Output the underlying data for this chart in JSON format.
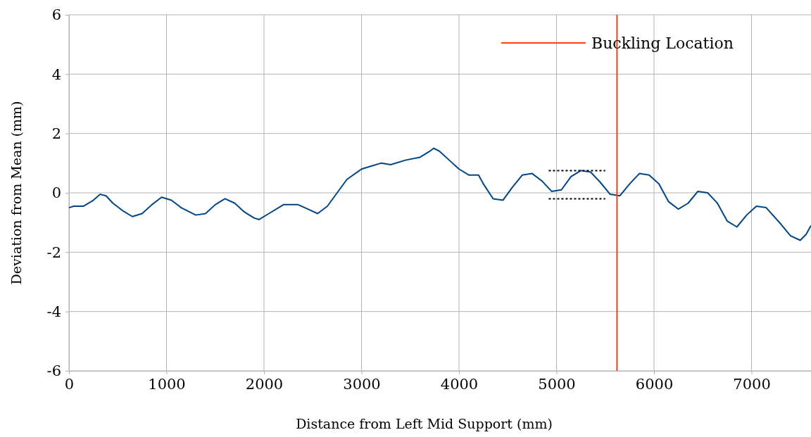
{
  "chart_data": {
    "type": "line",
    "xlabel": "Distance from Left Mid Support (mm)",
    "ylabel": "Deviation from Mean (mm)",
    "xlim": [
      0,
      7610
    ],
    "xticks": [
      0,
      1000,
      2000,
      3000,
      4000,
      5000,
      6000,
      7000
    ],
    "ylim": [
      -6,
      6
    ],
    "yticks": [
      -6,
      -4,
      -2,
      0,
      2,
      4,
      6
    ],
    "grid": true,
    "legend": "top right",
    "line_style": "solid",
    "series": [
      {
        "color": "#004586",
        "x": [
          0,
          50,
          150,
          250,
          320,
          380,
          450,
          550,
          650,
          750,
          850,
          950,
          1050,
          1150,
          1300,
          1400,
          1500,
          1600,
          1700,
          1800,
          1900,
          1950,
          2050,
          2200,
          2350,
          2450,
          2550,
          2650,
          2750,
          2850,
          3000,
          3100,
          3200,
          3300,
          3450,
          3600,
          3700,
          3740,
          3800,
          3900,
          4000,
          4100,
          4200,
          4250,
          4350,
          4450,
          4550,
          4650,
          4750,
          4850,
          4950,
          5050,
          5150,
          5250,
          5350,
          5450,
          5550,
          5650,
          5750,
          5850,
          5950,
          6050,
          6150,
          6250,
          6350,
          6450,
          6550,
          6650,
          6750,
          6850,
          6950,
          7050,
          7150,
          7300,
          7400,
          7500,
          7560,
          7610
        ],
        "values": [
          -0.5,
          -0.45,
          -0.45,
          -0.25,
          -0.05,
          -0.1,
          -0.35,
          -0.6,
          -0.8,
          -0.7,
          -0.4,
          -0.15,
          -0.25,
          -0.5,
          -0.75,
          -0.7,
          -0.4,
          -0.2,
          -0.35,
          -0.65,
          -0.85,
          -0.9,
          -0.7,
          -0.4,
          -0.4,
          -0.55,
          -0.7,
          -0.45,
          0,
          0.45,
          0.8,
          0.9,
          1,
          0.95,
          1.1,
          1.2,
          1.4,
          1.5,
          1.4,
          1.1,
          0.8,
          0.6,
          0.6,
          0.3,
          -0.2,
          -0.25,
          0.2,
          0.6,
          0.65,
          0.4,
          0.05,
          0.1,
          0.55,
          0.75,
          0.7,
          0.35,
          -0.05,
          -0.1,
          0.3,
          0.65,
          0.6,
          0.3,
          -0.3,
          -0.55,
          -0.35,
          0.05,
          0,
          -0.35,
          -0.95,
          -1.15,
          -0.75,
          -0.45,
          -0.5,
          -1.05,
          -1.45,
          -1.6,
          -1.4,
          -1.1
        ]
      },
      {
        "name": "Buckling Location",
        "color": "#ff420e",
        "x": [
          5620,
          5620
        ],
        "values": [
          -6,
          6
        ]
      },
      {
        "color": "#000000",
        "line_style": "dotted",
        "x": [
          4920,
          5500
        ],
        "values": [
          0.75,
          0.75
        ]
      },
      {
        "color": "#000000",
        "line_style": "dotted",
        "x": [
          4920,
          5500
        ],
        "values": [
          -0.2,
          -0.2
        ]
      }
    ]
  }
}
